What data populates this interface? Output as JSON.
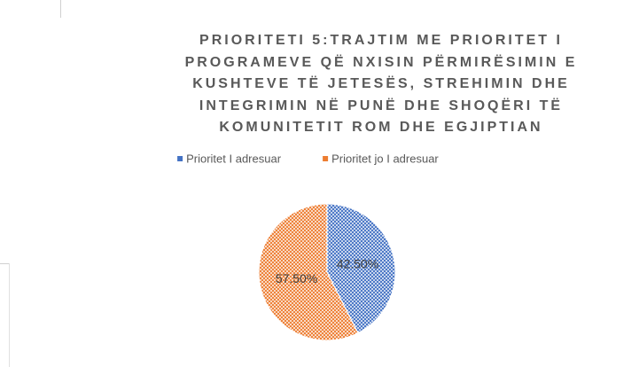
{
  "chart_data": {
    "type": "pie",
    "title": "PRIORITETI 5:TRAJTIM ME PRIORITET I PROGRAMEVE QË NXISIN PËRMIRËSIMIN E KUSHTEVE TË JETESËS, STREHIMIN DHE INTEGRIMIN NË PUNË DHE SHOQËRI TË KOMUNITETIT ROM DHE EGJIPTIAN",
    "categories": [
      "Prioritet I adresuar",
      "Prioritet jo I adresuar"
    ],
    "values": [
      42.5,
      57.5
    ],
    "value_labels": [
      "42.50%",
      "57.50%"
    ],
    "colors": [
      "#4472c4",
      "#ed7d31"
    ],
    "legend": "top"
  }
}
